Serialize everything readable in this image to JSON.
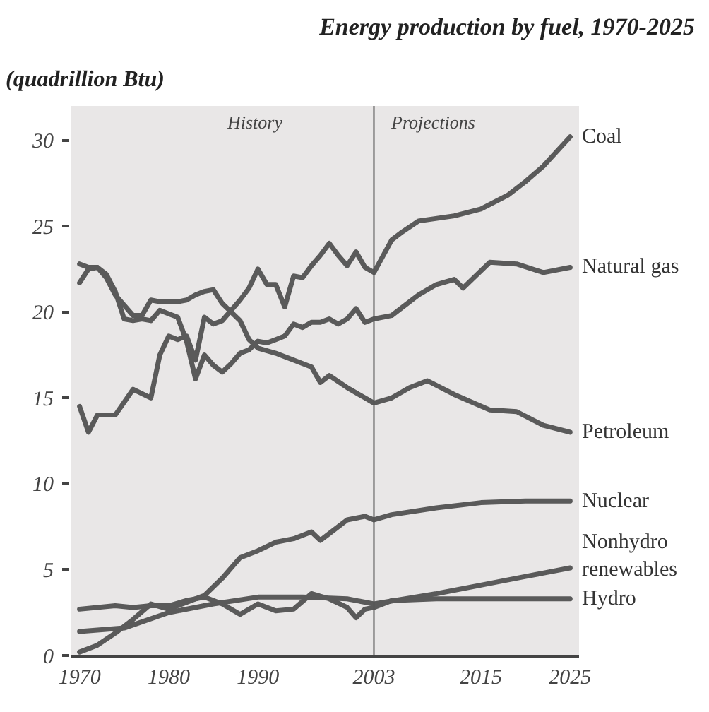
{
  "chart_data": {
    "type": "line",
    "title": "Energy production by fuel, 1970-2025",
    "subtitle": "(quadrillion Btu)",
    "annotations": [
      "History",
      "Projections"
    ],
    "xlim": [
      1969,
      2026
    ],
    "xticks": [
      1970,
      1980,
      1990,
      2003,
      2015,
      2025
    ],
    "ylim": [
      0,
      32
    ],
    "yticks": [
      0,
      5,
      10,
      15,
      20,
      25,
      30
    ],
    "legend": false,
    "line_style": "solid",
    "ref_lines": [
      {
        "axis": "x",
        "value": 2003,
        "color": "#555555"
      }
    ],
    "series": [
      {
        "name": "Coal",
        "color": "#5a5a5a",
        "x": [
          1970,
          1971,
          1972,
          1974,
          1976,
          1978,
          1979,
          1980,
          1981,
          1982,
          1983,
          1984,
          1985,
          1986,
          1987,
          1988,
          1989,
          1990,
          1991,
          1992,
          1993,
          1994,
          1995,
          1996,
          1997,
          1998,
          1999,
          2000,
          2001,
          2002,
          2003,
          2005,
          2006,
          2008,
          2012,
          2015,
          2018,
          2020,
          2022,
          2025
        ],
        "values": [
          14.5,
          13,
          14,
          14,
          15.5,
          15,
          17.5,
          18.6,
          18.4,
          18.6,
          17.2,
          19.7,
          19.3,
          19.5,
          20.1,
          20.7,
          21.4,
          22.5,
          21.6,
          21.6,
          20.3,
          22.1,
          22,
          22.7,
          23.3,
          24,
          23.3,
          22.7,
          23.5,
          22.6,
          22.3,
          24.2,
          24.6,
          25.3,
          25.6,
          26,
          26.8,
          27.6,
          28.5,
          30.2
        ]
      },
      {
        "name": "Natural gas",
        "color": "#5a5a5a",
        "x": [
          1970,
          1971,
          1972,
          1973,
          1974,
          1975,
          1976,
          1977,
          1978,
          1979,
          1980,
          1981,
          1982,
          1983,
          1984,
          1985,
          1986,
          1987,
          1988,
          1989,
          1990,
          1991,
          1992,
          1993,
          1994,
          1995,
          1996,
          1997,
          1998,
          1999,
          2000,
          2001,
          2002,
          2003,
          2005,
          2008,
          2010,
          2012,
          2013,
          2016,
          2019,
          2022,
          2025
        ],
        "values": [
          21.7,
          22.5,
          22.6,
          22.2,
          21.2,
          19.6,
          19.5,
          19.6,
          19.5,
          20.1,
          19.9,
          19.7,
          18.3,
          16.1,
          17.5,
          16.9,
          16.5,
          17,
          17.6,
          17.8,
          18.3,
          18.2,
          18.4,
          18.6,
          19.3,
          19.1,
          19.4,
          19.4,
          19.6,
          19.3,
          19.6,
          20.2,
          19.4,
          19.6,
          19.8,
          21,
          21.6,
          21.9,
          21.4,
          22.9,
          22.8,
          22.3,
          22.6
        ]
      },
      {
        "name": "Petroleum",
        "color": "#5a5a5a",
        "x": [
          1970,
          1971,
          1972,
          1973,
          1974,
          1975,
          1976,
          1977,
          1978,
          1979,
          1980,
          1981,
          1982,
          1983,
          1984,
          1985,
          1986,
          1987,
          1988,
          1989,
          1990,
          1992,
          1994,
          1996,
          1997,
          1998,
          2000,
          2002,
          2003,
          2005,
          2007,
          2009,
          2012,
          2016,
          2019,
          2022,
          2025
        ],
        "values": [
          22.8,
          22.6,
          22.6,
          22,
          21,
          20.4,
          19.8,
          19.8,
          20.7,
          20.6,
          20.6,
          20.6,
          20.7,
          21,
          21.2,
          21.3,
          20.5,
          20,
          19.5,
          18.4,
          17.9,
          17.6,
          17.2,
          16.8,
          15.9,
          16.3,
          15.6,
          15,
          14.7,
          15,
          15.6,
          16,
          15.2,
          14.3,
          14.2,
          13.4,
          13
        ]
      },
      {
        "name": "Nuclear",
        "color": "#5a5a5a",
        "x": [
          1970,
          1972,
          1974,
          1976,
          1978,
          1980,
          1982,
          1984,
          1986,
          1988,
          1990,
          1992,
          1994,
          1996,
          1997,
          1998,
          2000,
          2002,
          2003,
          2005,
          2010,
          2015,
          2020,
          2025
        ],
        "values": [
          0.2,
          0.6,
          1.3,
          2.1,
          3,
          2.7,
          3.1,
          3.5,
          4.5,
          5.7,
          6.1,
          6.6,
          6.8,
          7.2,
          6.7,
          7.1,
          7.9,
          8.1,
          7.9,
          8.2,
          8.6,
          8.9,
          9,
          9
        ]
      },
      {
        "name": "Nonhydro renewables",
        "color": "#5a5a5a",
        "x": [
          1970,
          1975,
          1980,
          1985,
          1990,
          1995,
          2000,
          2003,
          2010,
          2015,
          2020,
          2025
        ],
        "values": [
          1.4,
          1.6,
          2.5,
          3,
          3.4,
          3.4,
          3.3,
          3,
          3.6,
          4.1,
          4.6,
          5.1
        ]
      },
      {
        "name": "Hydro",
        "color": "#5a5a5a",
        "x": [
          1970,
          1974,
          1976,
          1978,
          1980,
          1982,
          1984,
          1986,
          1988,
          1990,
          1992,
          1994,
          1996,
          1998,
          2000,
          2001,
          2002,
          2003,
          2005,
          2010,
          2025
        ],
        "values": [
          2.7,
          2.9,
          2.8,
          2.9,
          2.9,
          3.2,
          3.4,
          3,
          2.4,
          3,
          2.6,
          2.7,
          3.6,
          3.3,
          2.8,
          2.2,
          2.7,
          2.8,
          3.2,
          3.3,
          3.3
        ]
      }
    ]
  }
}
